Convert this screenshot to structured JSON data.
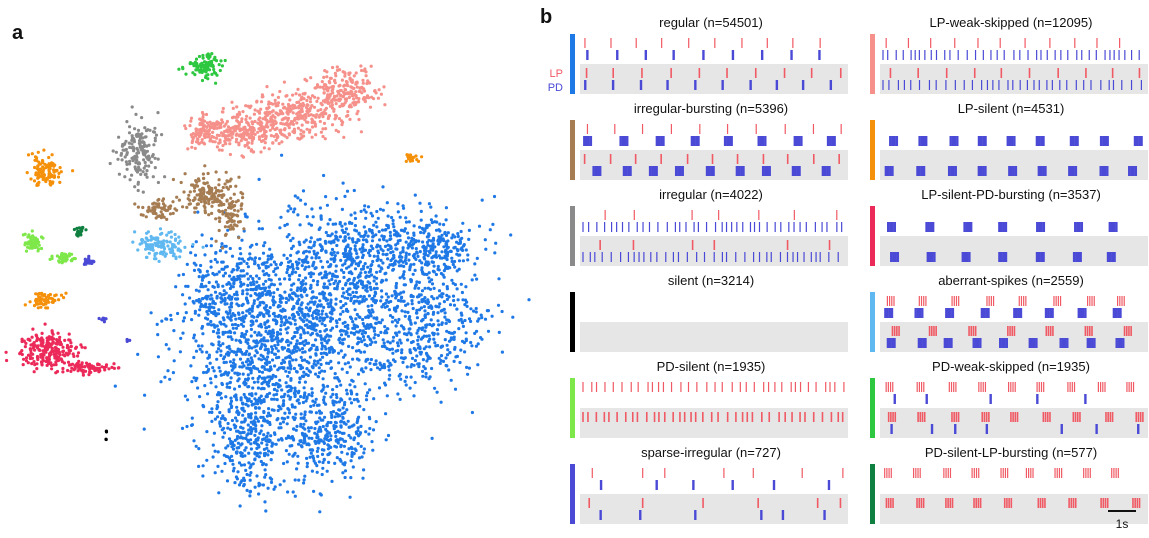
{
  "figure": {
    "panel_a_label": "a",
    "panel_b_label": "b",
    "legend_lp": "LP",
    "legend_pd": "PD",
    "scale_bar_label": "1s",
    "colors": {
      "lp_spike": "#f05a64",
      "pd_spike": "#4a4ad6",
      "row_bg": "#e6e6e6"
    }
  },
  "panels": [
    {
      "title": "regular (n=54501)",
      "color": "#1e78e6",
      "lp": "periodic",
      "pd": "periodic",
      "col": 0
    },
    {
      "title": "irregular-bursting (n=5396)",
      "color": "#a67c52",
      "lp": "periodic",
      "pd": "bursty",
      "col": 0
    },
    {
      "title": "irregular (n=4022)",
      "color": "#8a8a8a",
      "lp": "sparse",
      "pd": "dense",
      "col": 0
    },
    {
      "title": "silent (n=3214)",
      "color": "#000000",
      "lp": "none",
      "pd": "none",
      "col": 0
    },
    {
      "title": "PD-silent (n=1935)",
      "color": "#7ee84a",
      "lp": "dense",
      "pd": "none",
      "col": 0
    },
    {
      "title": "sparse-irregular (n=727)",
      "color": "#4a4ad6",
      "lp": "sparse",
      "pd": "sparse",
      "col": 0
    },
    {
      "title": "LP-weak-skipped (n=12095)",
      "color": "#f5918a",
      "lp": "periodic",
      "pd": "dense",
      "col": 1
    },
    {
      "title": "LP-silent (n=4531)",
      "color": "#f5900a",
      "lp": "none",
      "pd": "bursty",
      "col": 1
    },
    {
      "title": "LP-silent-PD-bursting (n=3537)",
      "color": "#ec2a5a",
      "lp": "none",
      "pd": "bursty",
      "col": 1
    },
    {
      "title": "aberrant-spikes (n=2559)",
      "color": "#60b8f0",
      "lp": "bursty",
      "pd": "bursty",
      "col": 1
    },
    {
      "title": "PD-weak-skipped (n=1935)",
      "color": "#2ec840",
      "lp": "bursty",
      "pd": "sparse",
      "col": 1
    },
    {
      "title": "PD-silent-LP-bursting (n=577)",
      "color": "#108040",
      "lp": "bursty",
      "pd": "none",
      "col": 1
    }
  ],
  "tsne_clusters": [
    {
      "name": "regular",
      "color": "#1e78e6"
    },
    {
      "name": "LP-weak-skipped",
      "color": "#f5918a"
    },
    {
      "name": "irregular-bursting",
      "color": "#a67c52"
    },
    {
      "name": "irregular",
      "color": "#8a8a8a"
    },
    {
      "name": "aberrant-spikes",
      "color": "#60b8f0"
    },
    {
      "name": "PD-weak-skipped",
      "color": "#2ec840"
    },
    {
      "name": "LP-silent",
      "color": "#f5900a"
    },
    {
      "name": "LP-silent-PD-bursting",
      "color": "#ec2a5a"
    },
    {
      "name": "PD-silent",
      "color": "#7ee84a"
    },
    {
      "name": "PD-silent-LP-bursting",
      "color": "#108040"
    },
    {
      "name": "sparse-irregular",
      "color": "#4a4ad6"
    },
    {
      "name": "silent",
      "color": "#000000"
    }
  ]
}
